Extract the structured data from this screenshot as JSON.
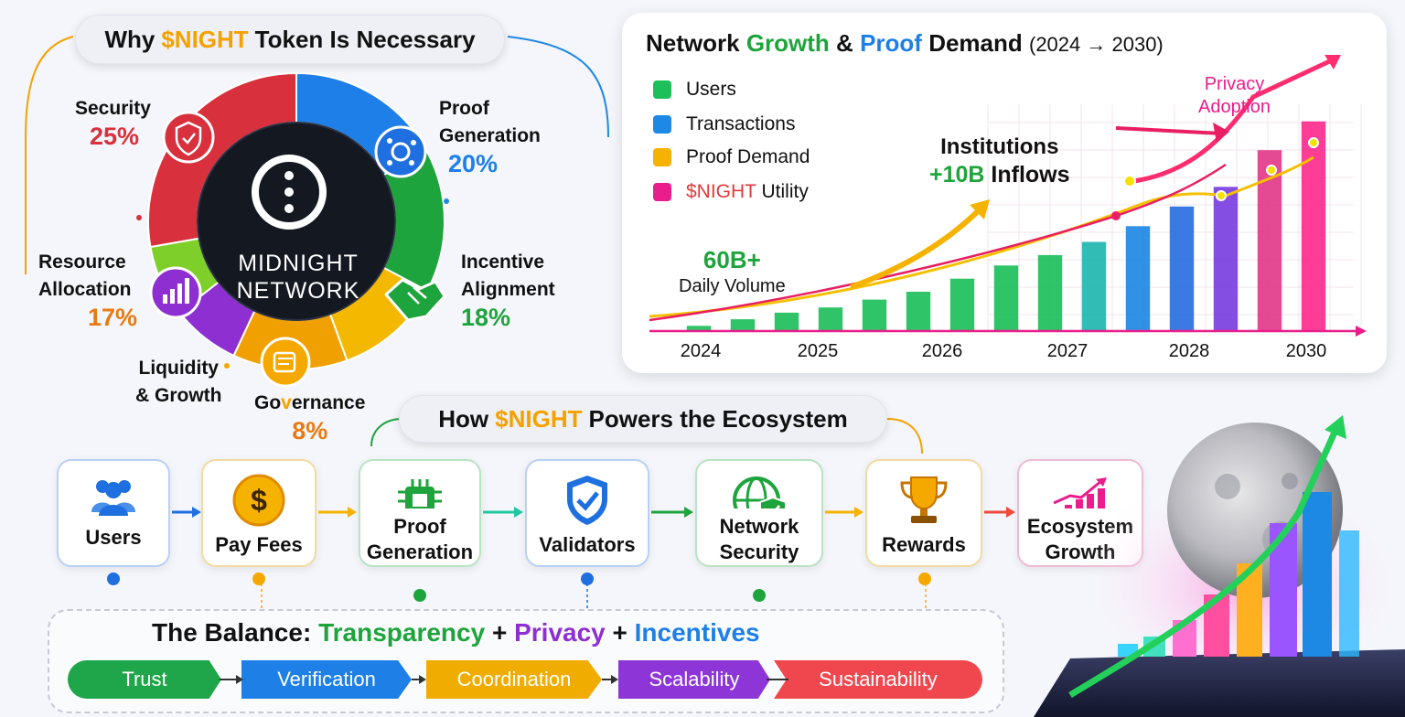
{
  "donut": {
    "title_prefix": "Why",
    "title_token": "$NIGHT",
    "title_suffix": "Token Is Necessary",
    "center_line1": "MIDNIGHT",
    "center_line2": "NETWORK",
    "segments": [
      {
        "name": "Security",
        "pct": "25%",
        "color": "#d8303c",
        "icon": "shield-icon"
      },
      {
        "name": "Proof Generation",
        "pct": "20%",
        "color": "#1f7fe8",
        "icon": "gear-network-icon"
      },
      {
        "name": "Incentive Alignment",
        "pct": "18%",
        "color": "#1ea43c",
        "icon": "handshake-icon"
      },
      {
        "name": "Governance",
        "pct": "8%",
        "color": "#f5a800",
        "icon": "vote-icon"
      },
      {
        "name": "Liquidity & Growth",
        "color": "#f5a800"
      },
      {
        "name": "Resource Allocation",
        "pct": "17%",
        "color": "#8e2fd2",
        "icon": "bar-chart-icon"
      }
    ]
  },
  "growth_chart": {
    "title_a": "Network",
    "title_b": "Growth",
    "title_c": "&",
    "title_d": "Proof",
    "title_e": "Demand",
    "title_range": "(2024 → 2030)",
    "annotation_daily_value": "60B+",
    "annotation_daily_label": "Daily Volume",
    "annotation_inst_line1": "Institutions",
    "annotation_inst_value": "+10B",
    "annotation_inst_label": "Inflows",
    "annotation_privacy_line1": "Privacy",
    "annotation_privacy_line2": "Adoption"
  },
  "chart_data": {
    "type": "bar",
    "x_tick_labels": [
      "2024",
      "2025",
      "2026",
      "2027",
      "2028",
      "2030"
    ],
    "legend": [
      {
        "name": "Users",
        "color": "#1dbf5a"
      },
      {
        "name": "Transactions",
        "color": "#1e88e5"
      },
      {
        "name": "Proof Demand",
        "color": "#f5b300"
      },
      {
        "name": "$NIGHT Utility",
        "color": "#e91e8c"
      }
    ],
    "bars": [
      {
        "value": 4,
        "color": "#1dbf5a"
      },
      {
        "value": 9,
        "color": "#1dbf5a"
      },
      {
        "value": 14,
        "color": "#1dbf5a"
      },
      {
        "value": 18,
        "color": "#1dbf5a"
      },
      {
        "value": 24,
        "color": "#1dbf5a"
      },
      {
        "value": 30,
        "color": "#1dbf5a"
      },
      {
        "value": 40,
        "color": "#1dbf5a"
      },
      {
        "value": 50,
        "color": "#1dbf5a"
      },
      {
        "value": 58,
        "color": "#1dbf5a"
      },
      {
        "value": 68,
        "color": "#1fb6b0"
      },
      {
        "value": 80,
        "color": "#1e88e5"
      },
      {
        "value": 95,
        "color": "#2a6fe0"
      },
      {
        "value": 110,
        "color": "#7b3fe0"
      },
      {
        "value": 138,
        "color": "#e23a8a"
      },
      {
        "value": 160,
        "color": "#ff2d8e"
      }
    ],
    "ylim": [
      0,
      180
    ],
    "grid": true,
    "legend_position": "top-left"
  },
  "flow": {
    "title_prefix": "How",
    "title_token": "$NIGHT",
    "title_suffix": "Powers the Ecosystem",
    "steps": [
      {
        "label": "Users",
        "icon": "users-icon",
        "dot": "#1e6fe0",
        "border": "#b9d0f5"
      },
      {
        "label": "Pay Fees",
        "icon": "dollar-coin-icon",
        "dot": "#f5a800",
        "border": "#f3dba0"
      },
      {
        "label": "Proof Generation",
        "icon": "chip-icon",
        "dot": "#1ea43c",
        "border": "#b9e3c2"
      },
      {
        "label": "Validators",
        "icon": "shield-check-icon",
        "dot": "#1e6fe0",
        "border": "#b9d0f5"
      },
      {
        "label": "Network Security",
        "icon": "globe-shield-icon",
        "dot": "#1ea43c",
        "border": "#b9e3c2"
      },
      {
        "label": "Rewards",
        "icon": "trophy-icon",
        "dot": "#f5a800",
        "border": "#f3dba0"
      },
      {
        "label": "Ecosystem Growth",
        "icon": "growth-chart-icon",
        "border": "#f0b9d3"
      }
    ]
  },
  "balance": {
    "prefix": "The Balance:",
    "word1": "Transparency",
    "plus1": "+",
    "word2": "Privacy",
    "plus2": "+",
    "word3": "Incentives",
    "pillars": [
      {
        "label": "Trust",
        "color": "#1fa64a"
      },
      {
        "label": "Verification",
        "color": "#1e7fe6"
      },
      {
        "label": "Coordination",
        "color": "#f0ac00"
      },
      {
        "label": "Scalability",
        "color": "#8e35d8"
      },
      {
        "label": "Sustainability",
        "color": "#f0474e"
      }
    ]
  }
}
